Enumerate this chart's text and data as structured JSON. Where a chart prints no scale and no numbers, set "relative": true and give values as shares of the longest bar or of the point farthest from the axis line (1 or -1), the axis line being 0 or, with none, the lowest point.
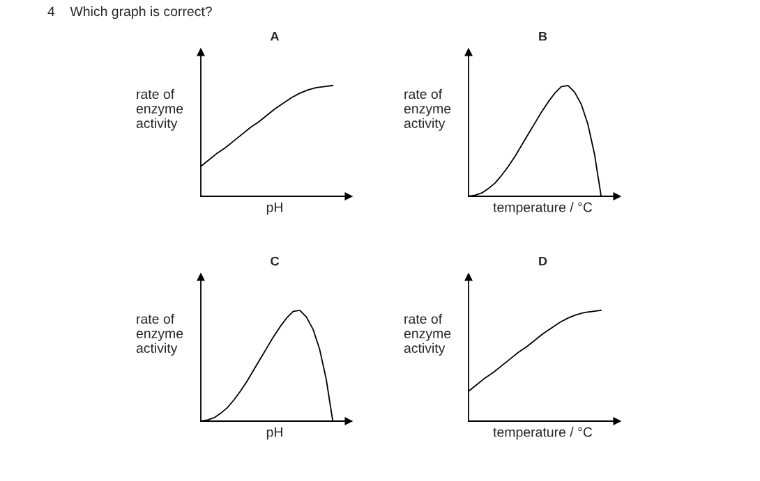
{
  "chart_data": [
    {
      "type": "line",
      "title": "A",
      "xlabel": "pH",
      "ylabel": "rate of\nenzyme\nactivity",
      "relative": true,
      "tick_labels": false,
      "annotations": [
        "4    Which graph is correct?"
      ],
      "categories": [
        null,
        null,
        null,
        null,
        null,
        null,
        null,
        null,
        null,
        null,
        null,
        null,
        null,
        null,
        null,
        null,
        null
      ],
      "series": [
        {
          "color": "#000000",
          "values": [
            0.27,
            0.33,
            0.39,
            0.44,
            0.5,
            0.56,
            0.62,
            0.67,
            0.73,
            0.79,
            0.84,
            0.89,
            0.93,
            0.96,
            0.98,
            0.99,
            1.0
          ]
        }
      ]
    },
    {
      "type": "line",
      "title": "B",
      "xlabel": "temperature / °C",
      "ylabel": "rate of\nenzyme\nactivity",
      "relative": true,
      "tick_labels": false,
      "categories": [
        null,
        null,
        null,
        null,
        null,
        null,
        null,
        null,
        null,
        null,
        null,
        null,
        null,
        null,
        null,
        null,
        null,
        null,
        null,
        null,
        null
      ],
      "series": [
        {
          "color": "#000000",
          "values": [
            0,
            0.01,
            0.03,
            0.07,
            0.12,
            0.19,
            0.27,
            0.36,
            0.46,
            0.56,
            0.66,
            0.76,
            0.85,
            0.93,
            0.99,
            1.0,
            0.94,
            0.83,
            0.65,
            0.38,
            0
          ]
        }
      ]
    },
    {
      "type": "line",
      "title": "C",
      "xlabel": "pH",
      "ylabel": "rate of\nenzyme\nactivity",
      "relative": true,
      "tick_labels": false,
      "categories": [
        null,
        null,
        null,
        null,
        null,
        null,
        null,
        null,
        null,
        null,
        null,
        null,
        null,
        null,
        null,
        null,
        null,
        null,
        null,
        null,
        null
      ],
      "series": [
        {
          "color": "#000000",
          "values": [
            0,
            0.01,
            0.03,
            0.07,
            0.12,
            0.19,
            0.27,
            0.36,
            0.46,
            0.56,
            0.66,
            0.76,
            0.85,
            0.93,
            0.99,
            1.0,
            0.94,
            0.83,
            0.65,
            0.38,
            0
          ]
        }
      ]
    },
    {
      "type": "line",
      "title": "D",
      "xlabel": "temperature / °C",
      "ylabel": "rate of\nenzyme\nactivity",
      "relative": true,
      "tick_labels": false,
      "categories": [
        null,
        null,
        null,
        null,
        null,
        null,
        null,
        null,
        null,
        null,
        null,
        null,
        null,
        null,
        null,
        null,
        null
      ],
      "series": [
        {
          "color": "#000000",
          "values": [
            0.27,
            0.33,
            0.39,
            0.44,
            0.5,
            0.56,
            0.62,
            0.67,
            0.73,
            0.79,
            0.84,
            0.89,
            0.93,
            0.96,
            0.98,
            0.99,
            1.0
          ]
        }
      ]
    }
  ]
}
